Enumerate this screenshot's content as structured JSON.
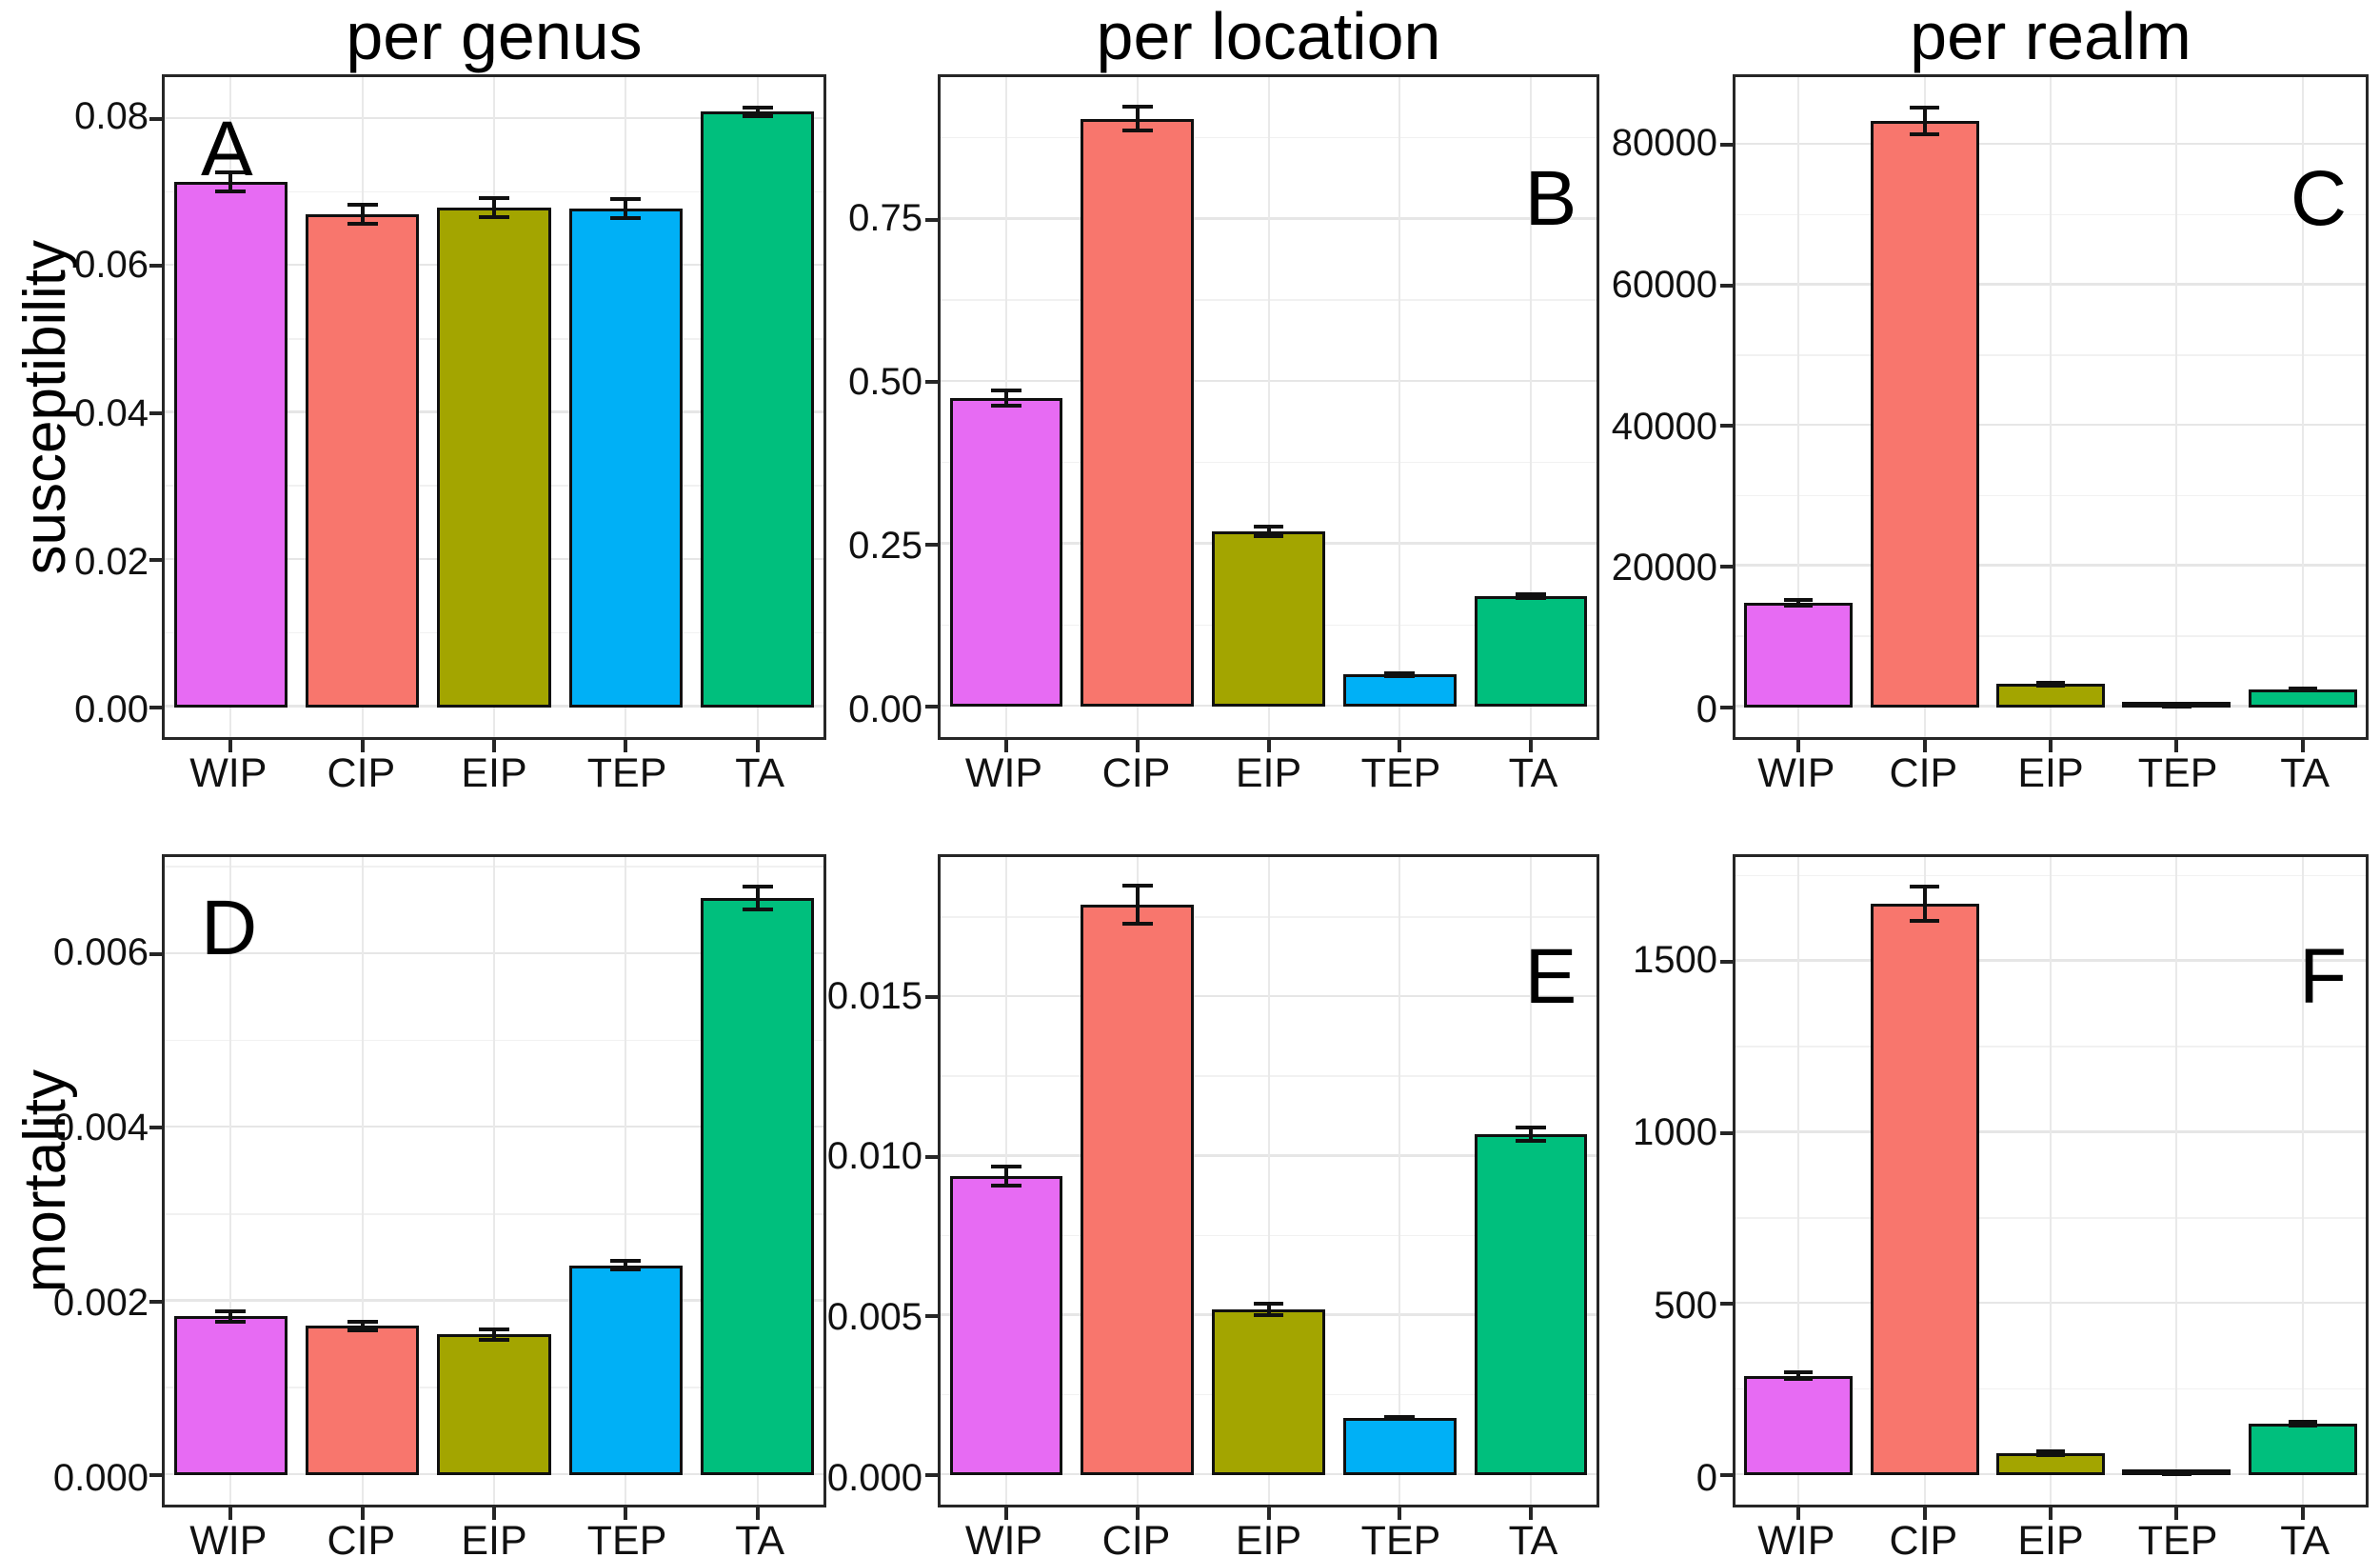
{
  "figure": {
    "column_titles": [
      "per genus",
      "per location",
      "per realm"
    ],
    "row_labels": [
      "susceptibility",
      "mortality"
    ],
    "categories": [
      "WIP",
      "CIP",
      "EIP",
      "TEP",
      "TA"
    ],
    "bar_colors": {
      "WIP": "#E76BF3",
      "CIP": "#F8766D",
      "EIP": "#A3A500",
      "TEP": "#00B0F6",
      "TA": "#00BF7D"
    },
    "style_colors": {
      "panel_border": "#262626",
      "bar_stroke": "#101010",
      "grid_major": "#e6e6e6",
      "grid_minor": "#f1f1f1",
      "background": "#ffffff"
    }
  },
  "chart_data": [
    {
      "panel": "A",
      "type": "bar",
      "title": "per genus",
      "ylabel": "susceptibility",
      "letter": "A",
      "letter_corner": "tl",
      "categories": [
        "WIP",
        "CIP",
        "EIP",
        "TEP",
        "TA"
      ],
      "values": [
        0.0715,
        0.067,
        0.068,
        0.0678,
        0.081
      ],
      "errors": [
        0.0013,
        0.0013,
        0.0013,
        0.0013,
        0.0006
      ],
      "ylim": [
        -0.00408,
        0.0857
      ],
      "yticks": [
        {
          "v": 0.0,
          "label": "0.00"
        },
        {
          "v": 0.02,
          "label": "0.02"
        },
        {
          "v": 0.04,
          "label": "0.04"
        },
        {
          "v": 0.06,
          "label": "0.06"
        },
        {
          "v": 0.08,
          "label": "0.08"
        }
      ],
      "minor_gridlines": [
        0.01,
        0.03,
        0.05,
        0.07
      ]
    },
    {
      "panel": "B",
      "type": "bar",
      "title": "per location",
      "ylabel": "susceptibility",
      "letter": "B",
      "letter_corner": "tr",
      "categories": [
        "WIP",
        "CIP",
        "EIP",
        "TEP",
        "TA"
      ],
      "values": [
        0.475,
        0.905,
        0.27,
        0.05,
        0.17
      ],
      "errors": [
        0.012,
        0.018,
        0.007,
        0.002,
        0.003
      ],
      "ylim": [
        -0.0462,
        0.969
      ],
      "yticks": [
        {
          "v": 0.0,
          "label": "0.00"
        },
        {
          "v": 0.25,
          "label": "0.25"
        },
        {
          "v": 0.5,
          "label": "0.50"
        },
        {
          "v": 0.75,
          "label": "0.75"
        }
      ],
      "minor_gridlines": [
        0.125,
        0.375,
        0.625,
        0.875
      ]
    },
    {
      "panel": "C",
      "type": "bar",
      "title": "per realm",
      "ylabel": "susceptibility",
      "letter": "C",
      "letter_corner": "tr",
      "categories": [
        "WIP",
        "CIP",
        "EIP",
        "TEP",
        "TA"
      ],
      "values": [
        14800,
        83500,
        3300,
        120,
        2500
      ],
      "errors": [
        400,
        1900,
        200,
        40,
        120
      ],
      "ylim": [
        -4270,
        89670
      ],
      "yticks": [
        {
          "v": 0,
          "label": "0"
        },
        {
          "v": 20000,
          "label": "20000"
        },
        {
          "v": 40000,
          "label": "40000"
        },
        {
          "v": 60000,
          "label": "60000"
        },
        {
          "v": 80000,
          "label": "80000"
        }
      ],
      "minor_gridlines": [
        10000,
        30000,
        50000,
        70000
      ]
    },
    {
      "panel": "D",
      "type": "bar",
      "title": "per genus",
      "ylabel": "mortality",
      "letter": "D",
      "letter_corner": "tl",
      "categories": [
        "WIP",
        "CIP",
        "EIP",
        "TEP",
        "TA"
      ],
      "values": [
        0.00183,
        0.00172,
        0.00162,
        0.00242,
        0.00665
      ],
      "errors": [
        6e-05,
        5e-05,
        6e-05,
        5e-05,
        0.00013
      ],
      "ylim": [
        -0.000339,
        0.00712
      ],
      "yticks": [
        {
          "v": 0.0,
          "label": "0.000"
        },
        {
          "v": 0.002,
          "label": "0.002"
        },
        {
          "v": 0.004,
          "label": "0.004"
        },
        {
          "v": 0.006,
          "label": "0.006"
        }
      ],
      "minor_gridlines": [
        0.001,
        0.003,
        0.005,
        0.007
      ]
    },
    {
      "panel": "E",
      "type": "bar",
      "title": "per location",
      "ylabel": "mortality",
      "letter": "E",
      "letter_corner": "tr",
      "categories": [
        "WIP",
        "CIP",
        "EIP",
        "TEP",
        "TA"
      ],
      "values": [
        0.0094,
        0.0179,
        0.0052,
        0.0018,
        0.0107
      ],
      "errors": [
        0.0003,
        0.0006,
        0.00018,
        4e-05,
        0.00022
      ],
      "ylim": [
        -0.000925,
        0.0194
      ],
      "yticks": [
        {
          "v": 0.0,
          "label": "0.000"
        },
        {
          "v": 0.005,
          "label": "0.005"
        },
        {
          "v": 0.01,
          "label": "0.010"
        },
        {
          "v": 0.015,
          "label": "0.015"
        }
      ],
      "minor_gridlines": [
        0.0025,
        0.0075,
        0.0125,
        0.0175
      ]
    },
    {
      "panel": "F",
      "type": "bar",
      "title": "per realm",
      "ylabel": "mortality",
      "letter": "F",
      "letter_corner": "tr",
      "categories": [
        "WIP",
        "CIP",
        "EIP",
        "TEP",
        "TA"
      ],
      "values": [
        290,
        1670,
        65,
        4,
        150
      ],
      "errors": [
        10,
        50,
        6,
        2,
        5
      ],
      "ylim": [
        -86,
        1806
      ],
      "yticks": [
        {
          "v": 0,
          "label": "0"
        },
        {
          "v": 500,
          "label": "500"
        },
        {
          "v": 1000,
          "label": "1000"
        },
        {
          "v": 1500,
          "label": "1500"
        }
      ],
      "minor_gridlines": [
        250,
        750,
        1250,
        1750
      ]
    }
  ]
}
